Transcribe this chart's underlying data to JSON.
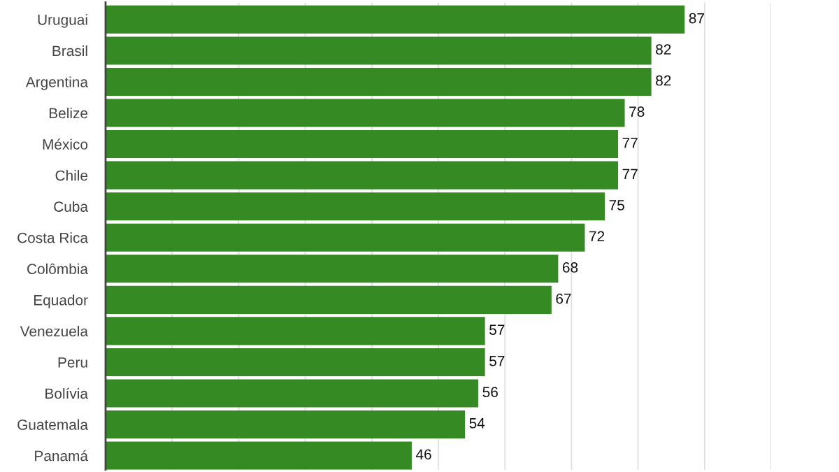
{
  "chart_data": {
    "type": "bar",
    "orientation": "horizontal",
    "categories": [
      "Uruguai",
      "Brasil",
      "Argentina",
      "Belize",
      "México",
      "Chile",
      "Cuba",
      "Costa Rica",
      "Colômbia",
      "Equador",
      "Venezuela",
      "Peru",
      "Bolívia",
      "Guatemala",
      "Panamá"
    ],
    "values": [
      87,
      82,
      82,
      78,
      77,
      77,
      75,
      72,
      68,
      67,
      57,
      57,
      56,
      54,
      46
    ],
    "color": "#358a24",
    "xlim": [
      0,
      100
    ],
    "xticks": [
      {
        "value": 10,
        "label": null
      },
      {
        "value": 20,
        "label": null
      },
      {
        "value": 30,
        "label": null
      },
      {
        "value": 40,
        "label": null
      },
      {
        "value": 50,
        "label": null
      },
      {
        "value": 60,
        "label": null
      },
      {
        "value": 70,
        "label": null
      },
      {
        "value": 80,
        "label": null
      },
      {
        "value": 90,
        "label": null
      },
      {
        "value": 100,
        "label": null
      }
    ],
    "grid": "x",
    "tick_labels": "y",
    "data_labels": true
  }
}
